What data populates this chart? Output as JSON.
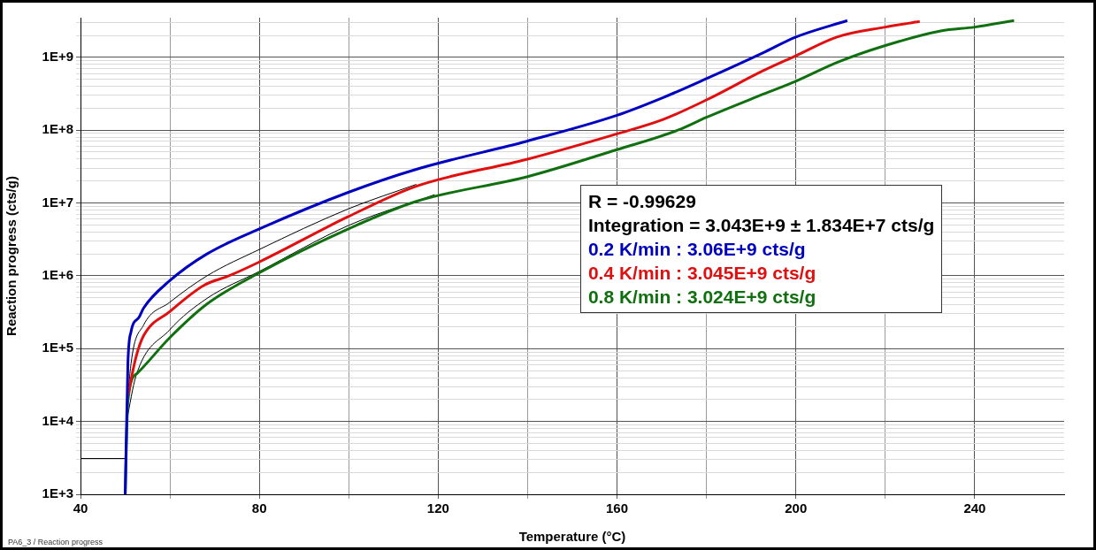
{
  "chart_data": {
    "type": "line",
    "xlabel": "Temperature (°C)",
    "ylabel": "Reaction progress (cts/g)",
    "log": "y",
    "grid": true,
    "legend": "right",
    "marker": "none",
    "line_style": "solid",
    "xlim": [
      40,
      260
    ],
    "xticks": [
      40,
      {
        "value": 60,
        "label": null
      },
      80,
      {
        "value": 100,
        "label": null
      },
      120,
      {
        "value": 140,
        "label": null
      },
      160,
      {
        "value": 180,
        "label": null
      },
      200,
      {
        "value": 220,
        "label": null
      },
      240
    ],
    "ylim": [
      1000,
      3500000000
    ],
    "yticks": [
      {
        "value": 1000,
        "label": "1E+3"
      },
      {
        "value": 2000,
        "label": null
      },
      {
        "value": 3000,
        "label": null
      },
      {
        "value": 4000,
        "label": null
      },
      {
        "value": 5000,
        "label": null
      },
      {
        "value": 6000,
        "label": null
      },
      {
        "value": 7000,
        "label": null
      },
      {
        "value": 8000,
        "label": null
      },
      {
        "value": 9000,
        "label": null
      },
      {
        "value": 10000,
        "label": "1E+4"
      },
      {
        "value": 20000,
        "label": null
      },
      {
        "value": 30000,
        "label": null
      },
      {
        "value": 40000,
        "label": null
      },
      {
        "value": 50000,
        "label": null
      },
      {
        "value": 60000,
        "label": null
      },
      {
        "value": 70000,
        "label": null
      },
      {
        "value": 80000,
        "label": null
      },
      {
        "value": 90000,
        "label": null
      },
      {
        "value": 100000,
        "label": "1E+5"
      },
      {
        "value": 200000,
        "label": null
      },
      {
        "value": 300000,
        "label": null
      },
      {
        "value": 400000,
        "label": null
      },
      {
        "value": 500000,
        "label": null
      },
      {
        "value": 600000,
        "label": null
      },
      {
        "value": 700000,
        "label": null
      },
      {
        "value": 800000,
        "label": null
      },
      {
        "value": 900000,
        "label": null
      },
      {
        "value": 1000000,
        "label": "1E+6"
      },
      {
        "value": 2000000,
        "label": null
      },
      {
        "value": 3000000,
        "label": null
      },
      {
        "value": 4000000,
        "label": null
      },
      {
        "value": 5000000,
        "label": null
      },
      {
        "value": 6000000,
        "label": null
      },
      {
        "value": 7000000,
        "label": null
      },
      {
        "value": 8000000,
        "label": null
      },
      {
        "value": 9000000,
        "label": null
      },
      {
        "value": 10000000,
        "label": "1E+7"
      },
      {
        "value": 20000000,
        "label": null
      },
      {
        "value": 30000000,
        "label": null
      },
      {
        "value": 40000000,
        "label": null
      },
      {
        "value": 50000000,
        "label": null
      },
      {
        "value": 60000000,
        "label": null
      },
      {
        "value": 70000000,
        "label": null
      },
      {
        "value": 80000000,
        "label": null
      },
      {
        "value": 90000000,
        "label": null
      },
      {
        "value": 100000000,
        "label": "1E+8"
      },
      {
        "value": 200000000,
        "label": null
      },
      {
        "value": 300000000,
        "label": null
      },
      {
        "value": 400000000,
        "label": null
      },
      {
        "value": 500000000,
        "label": null
      },
      {
        "value": 600000000,
        "label": null
      },
      {
        "value": 700000000,
        "label": null
      },
      {
        "value": 800000000,
        "label": null
      },
      {
        "value": 900000000,
        "label": null
      },
      {
        "value": 1000000000,
        "label": "1E+9"
      },
      {
        "value": 2000000000,
        "label": null
      },
      {
        "value": 3000000000,
        "label": null
      }
    ],
    "annotations": [
      "R = -0.99629",
      "Integration = 3.043E+9 ± 1.834E+7 cts/g",
      "PA6_3 / Reaction progress"
    ],
    "series": [
      {
        "name": "0.2 K/min : 3.06E+9 cts/g",
        "color": "#0000c0",
        "x": [
          50,
          50.6,
          51.3,
          53.1,
          54.1,
          59.9,
          68.3,
          80,
          99.9,
          115.1,
          140,
          160,
          170.3,
          180,
          192.6,
          200,
          211.5
        ],
        "values": [
          1000,
          62000,
          170000,
          270000,
          360000,
          850000,
          2000000,
          4400000,
          14000000,
          29000000,
          71000000,
          160000000,
          280000000,
          510000000,
          1150000000,
          1900000000,
          3200000000
        ]
      },
      {
        "name": "0.4 K/min : 3.045E+9 cts/g",
        "color": "#e01010",
        "x": [
          50.6,
          52.4,
          54.1,
          59.9,
          67.6,
          73.2,
          80,
          99.9,
          115.1,
          140,
          160,
          170.3,
          180,
          192.6,
          200,
          209.2,
          220,
          227.7
        ],
        "values": [
          23000,
          76000,
          150000,
          320000,
          740000,
          1000000,
          1550000,
          6500000,
          17000000,
          40000000,
          89000000,
          140000000,
          260000000,
          650000000,
          1050000000,
          1900000000,
          2600000000,
          3100000000
        ]
      },
      {
        "name": "0.8 K/min : 3.024E+9 cts/g",
        "color": "#107010",
        "x": [
          50,
          50.6,
          52.7,
          59.9,
          68.3,
          80,
          99.9,
          115.1,
          140,
          160,
          173.6,
          180,
          192.6,
          200,
          209.2,
          220,
          232.4,
          240,
          248.8
        ],
        "values": [
          1000,
          19000,
          46000,
          140000,
          410000,
          1100000,
          4400000,
          10500000,
          23000000,
          54000000,
          100000000,
          150000000,
          310000000,
          470000000,
          850000000,
          1450000000,
          2300000000,
          2600000000,
          3200000000
        ]
      },
      {
        "color": "#000000",
        "x": [
          40,
          50,
          50.3,
          51.3,
          54.1,
          59.9,
          68.3,
          80,
          99.9,
          115.1
        ],
        "values": [
          3100,
          3100,
          10000,
          62000,
          210000,
          430000,
          1000000,
          2300000,
          8300000,
          18000000
        ]
      },
      {
        "color": "#000000",
        "x": [
          50.3,
          52.4,
          59.9,
          68.3,
          80,
          99.9,
          119.2
        ],
        "values": [
          10000,
          42000,
          180000,
          490000,
          1150000,
          4900000,
          13000000
        ]
      }
    ]
  }
}
